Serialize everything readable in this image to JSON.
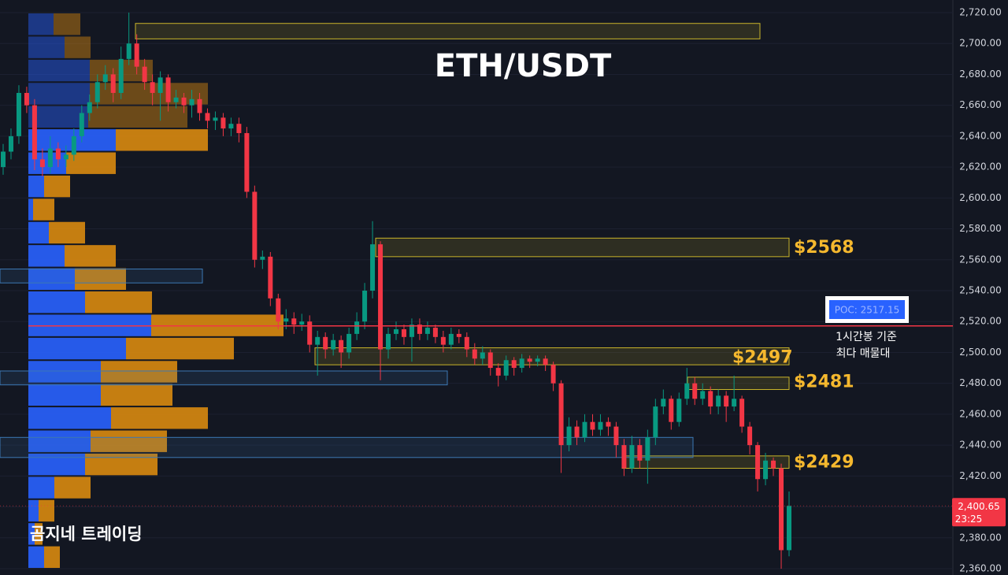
{
  "chart_data": {
    "type": "candlestick",
    "title": "ETH/USDT",
    "watermark": "곰지네 트레이딩",
    "ylim": [
      2360,
      2720
    ],
    "yticks": [
      {
        "value": 2720,
        "label": "2,720.00"
      },
      {
        "value": 2700,
        "label": "2,700.00"
      },
      {
        "value": 2680,
        "label": "2,680.00"
      },
      {
        "value": 2660,
        "label": "2,660.00"
      },
      {
        "value": 2640,
        "label": "2,640.00"
      },
      {
        "value": 2620,
        "label": "2,620.00"
      },
      {
        "value": 2600,
        "label": "2,600.00"
      },
      {
        "value": 2580,
        "label": "2,580.00"
      },
      {
        "value": 2560,
        "label": "2,560.00"
      },
      {
        "value": 2540,
        "label": "2,540.00"
      },
      {
        "value": 2520,
        "label": "2,520.00"
      },
      {
        "value": 2500,
        "label": "2,500.00"
      },
      {
        "value": 2480,
        "label": "2,480.00"
      },
      {
        "value": 2460,
        "label": "2,460.00"
      },
      {
        "value": 2440,
        "label": "2,440.00"
      },
      {
        "value": 2420,
        "label": "2,420.00"
      },
      {
        "value": 2400,
        "label": "2,400.00"
      },
      {
        "value": 2380,
        "label": "2,380.00"
      },
      {
        "value": 2360,
        "label": "2,360.00"
      }
    ],
    "up_color": "#089981",
    "down_color": "#f23645",
    "open": [
      2620,
      2630,
      2640,
      2668,
      2660,
      2625,
      2620,
      2632,
      2625,
      2628,
      2640,
      2655,
      2662,
      2675,
      2680,
      2668,
      2690,
      2700,
      2685,
      2675,
      2668,
      2678,
      2662,
      2665,
      2660,
      2664,
      2655,
      2650,
      2652,
      2645,
      2648,
      2642,
      2604,
      2560,
      2562,
      2535,
      2520,
      2522,
      2518,
      2520,
      2505,
      2510,
      2502,
      2508,
      2500,
      2512,
      2520,
      2540,
      2570,
      2502,
      2512,
      2515,
      2510,
      2518,
      2512,
      2516,
      2510,
      2505,
      2512,
      2510,
      2502,
      2496,
      2500,
      2490,
      2485,
      2495,
      2490,
      2496,
      2494,
      2496,
      2492,
      2480,
      2440,
      2452,
      2445,
      2455,
      2450,
      2455,
      2452,
      2440,
      2425,
      2440,
      2430,
      2445,
      2465,
      2470,
      2455,
      2470,
      2480,
      2470,
      2475,
      2465,
      2472,
      2465,
      2470,
      2452,
      2440,
      2418,
      2430,
      2425,
      2372
    ],
    "high": [
      2635,
      2645,
      2673,
      2672,
      2664,
      2632,
      2640,
      2636,
      2634,
      2645,
      2660,
      2667,
      2680,
      2686,
      2684,
      2698,
      2720,
      2706,
      2690,
      2680,
      2682,
      2680,
      2670,
      2668,
      2670,
      2668,
      2658,
      2656,
      2655,
      2652,
      2652,
      2646,
      2608,
      2566,
      2565,
      2538,
      2528,
      2526,
      2525,
      2524,
      2514,
      2513,
      2512,
      2511,
      2516,
      2526,
      2545,
      2585,
      2572,
      2516,
      2520,
      2518,
      2522,
      2522,
      2520,
      2518,
      2514,
      2516,
      2515,
      2513,
      2506,
      2504,
      2502,
      2493,
      2498,
      2497,
      2499,
      2498,
      2498,
      2498,
      2494,
      2482,
      2458,
      2456,
      2460,
      2460,
      2460,
      2458,
      2455,
      2444,
      2446,
      2444,
      2450,
      2470,
      2476,
      2472,
      2474,
      2490,
      2484,
      2480,
      2478,
      2476,
      2475,
      2485,
      2472,
      2455,
      2442,
      2435,
      2432,
      2428,
      2410
    ],
    "low": [
      2615,
      2625,
      2635,
      2655,
      2618,
      2614,
      2616,
      2620,
      2620,
      2624,
      2636,
      2650,
      2658,
      2670,
      2662,
      2664,
      2686,
      2680,
      2670,
      2660,
      2650,
      2656,
      2658,
      2655,
      2652,
      2650,
      2645,
      2644,
      2640,
      2640,
      2636,
      2600,
      2555,
      2554,
      2530,
      2515,
      2515,
      2512,
      2514,
      2500,
      2485,
      2496,
      2498,
      2490,
      2496,
      2508,
      2515,
      2535,
      2482,
      2496,
      2508,
      2505,
      2494,
      2508,
      2508,
      2506,
      2500,
      2502,
      2506,
      2497,
      2492,
      2492,
      2485,
      2478,
      2482,
      2485,
      2487,
      2490,
      2491,
      2488,
      2475,
      2422,
      2436,
      2440,
      2442,
      2446,
      2446,
      2446,
      2432,
      2420,
      2422,
      2425,
      2415,
      2440,
      2460,
      2450,
      2452,
      2466,
      2466,
      2466,
      2460,
      2460,
      2455,
      2462,
      2448,
      2434,
      2410,
      2414,
      2420,
      2360,
      2368
    ],
    "close": [
      2630,
      2640,
      2668,
      2660,
      2625,
      2620,
      2632,
      2625,
      2628,
      2640,
      2655,
      2662,
      2675,
      2680,
      2668,
      2690,
      2700,
      2685,
      2675,
      2668,
      2678,
      2662,
      2665,
      2660,
      2664,
      2655,
      2650,
      2652,
      2645,
      2648,
      2642,
      2604,
      2560,
      2562,
      2535,
      2520,
      2522,
      2518,
      2520,
      2505,
      2510,
      2502,
      2508,
      2500,
      2512,
      2520,
      2540,
      2570,
      2502,
      2512,
      2515,
      2510,
      2518,
      2512,
      2516,
      2510,
      2505,
      2512,
      2510,
      2502,
      2496,
      2500,
      2490,
      2485,
      2495,
      2490,
      2496,
      2494,
      2496,
      2492,
      2480,
      2440,
      2452,
      2445,
      2455,
      2450,
      2455,
      2452,
      2440,
      2425,
      2440,
      2430,
      2445,
      2465,
      2470,
      2455,
      2470,
      2480,
      2470,
      2475,
      2465,
      2472,
      2465,
      2470,
      2452,
      2440,
      2418,
      2430,
      2425,
      2372,
      2400.65
    ],
    "volume_profile": {
      "bins": [
        2720,
        2705,
        2690,
        2675,
        2660,
        2645,
        2630,
        2615,
        2600,
        2585,
        2570,
        2555,
        2540,
        2525,
        2510,
        2495,
        2480,
        2465,
        2450,
        2435,
        2420,
        2405,
        2390,
        2375,
        2360
      ],
      "buy": [
        32,
        46,
        78,
        78,
        76,
        111,
        48,
        20,
        6,
        26,
        46,
        59,
        72,
        156,
        124,
        92,
        92,
        105,
        79,
        72,
        33,
        13,
        8,
        20
      ],
      "sell": [
        34,
        33,
        80,
        150,
        126,
        117,
        63,
        33,
        27,
        46,
        65,
        65,
        85,
        168,
        137,
        97,
        91,
        123,
        97,
        92,
        46,
        20,
        10,
        20
      ],
      "buy_color": "#2962ff",
      "sell_color": "#d98a10"
    },
    "zones": [
      {
        "low": 2703,
        "high": 2713,
        "color": "#c9b52a"
      },
      {
        "low": 2562,
        "high": 2574,
        "value": 2568,
        "label": "$2568",
        "color": "#c9b52a"
      },
      {
        "low": 2492,
        "high": 2503,
        "value": 2497,
        "label": "$2497",
        "color": "#c9b52a"
      },
      {
        "low": 2476,
        "high": 2484,
        "value": 2481,
        "label": "$2481",
        "color": "#c9b52a"
      },
      {
        "low": 2425,
        "high": 2433,
        "value": 2429,
        "label": "$2429",
        "color": "#c9b52a"
      },
      {
        "low": 2545,
        "high": 2554,
        "color": "#3c78b4"
      },
      {
        "low": 2479,
        "high": 2488,
        "color": "#3c78b4"
      },
      {
        "low": 2432,
        "high": 2445,
        "color": "#3c78b4"
      }
    ],
    "poc": {
      "value": 2517.15,
      "label": "POC: 2517.15",
      "color": "#f23645"
    },
    "annotation": [
      "1시간봉 기준",
      "최다 매물대"
    ],
    "last_price": {
      "value": 2400.65,
      "label": "2,400.65",
      "countdown": "23:25"
    }
  }
}
